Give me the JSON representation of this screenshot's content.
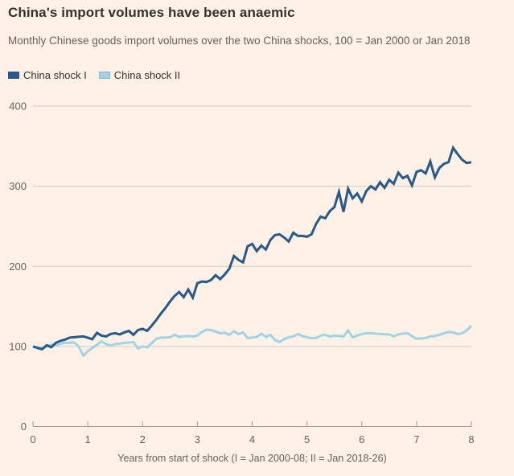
{
  "page": {
    "background": "#FFF1E5"
  },
  "header": {
    "title": "China's import volumes have been anaemic",
    "subtitle": "Monthly Chinese goods import volumes over the two China shocks, 100 = Jan 2000 or Jan 2018"
  },
  "legend": {
    "items": [
      {
        "label": "China shock I",
        "color": "#275A8C"
      },
      {
        "label": "China shock II",
        "color": "#9ED4E6"
      }
    ]
  },
  "chart_data": {
    "type": "line",
    "title": "China's import volumes have been anaemic",
    "subtitle": "Monthly Chinese goods import volumes over the two China shocks, 100 = Jan 2000 or Jan 2018",
    "xlabel": "Years from start of shock (I = Jan 2000-08; II = Jan 2018-26)",
    "ylabel": "",
    "x_ticks": [
      0,
      1,
      2,
      3,
      4,
      5,
      6,
      7,
      8
    ],
    "y_ticks": [
      0,
      100,
      200,
      300,
      400
    ],
    "xlim": [
      0,
      8
    ],
    "ylim": [
      0,
      400
    ],
    "grid": "horizontal-only",
    "legend_position": "top-left",
    "x_unit": "years from start of shock",
    "points_per_year": 12,
    "series": [
      {
        "name": "China shock I",
        "color": "#275A8C",
        "x_start": 0,
        "x_interval": 0.08333,
        "values": [
          100,
          98,
          96.5,
          101.5,
          99,
          104.5,
          107,
          108.5,
          111,
          111.5,
          112,
          112.5,
          111,
          109,
          117,
          113.5,
          112.5,
          115.5,
          116.5,
          115,
          117.5,
          119.5,
          114.5,
          120.5,
          122,
          119.5,
          126,
          133,
          141,
          148,
          156,
          163,
          168,
          161.5,
          171,
          161,
          179,
          181,
          180.5,
          183,
          189,
          184,
          190,
          197,
          213,
          208,
          205,
          225,
          228,
          219,
          226,
          221,
          233,
          239,
          240,
          236,
          231,
          242,
          238,
          238,
          237,
          240,
          253,
          262,
          260,
          269,
          274,
          293,
          268,
          297,
          285,
          291,
          281,
          294,
          300,
          296,
          305,
          298,
          308,
          303,
          317,
          310,
          313,
          301,
          318,
          320,
          316,
          331,
          311,
          323,
          328,
          330,
          348,
          340,
          333,
          329,
          330
        ]
      },
      {
        "name": "China shock II",
        "color": "#9ED4E6",
        "x_start": 0,
        "x_interval": 0.08333,
        "values": [
          100,
          99,
          97,
          100,
          102,
          101,
          103.5,
          104.5,
          104.5,
          105,
          100,
          88.5,
          94,
          98,
          102,
          106.5,
          103,
          101,
          103,
          103.5,
          104.5,
          105,
          105.5,
          97.5,
          100,
          99,
          104,
          109.5,
          111,
          111,
          111.5,
          114.5,
          112,
          112.5,
          113,
          112.5,
          113.5,
          118,
          121,
          120.5,
          118.5,
          116.5,
          117,
          114.5,
          119,
          115.5,
          117.5,
          110.5,
          111,
          112,
          116,
          112,
          114.5,
          108,
          105.5,
          109,
          111.5,
          112.5,
          115.5,
          113,
          111.5,
          110.5,
          110.5,
          113.5,
          114.5,
          112.5,
          113.5,
          113,
          112.5,
          120,
          111.5,
          113.5,
          115.5,
          116.5,
          116.5,
          116,
          115.5,
          115,
          115,
          112.5,
          115,
          116,
          116.5,
          113,
          109.5,
          110,
          110.5,
          112.5,
          113,
          114.5,
          116.5,
          118,
          117.5,
          115.5,
          116.5,
          120,
          126
        ]
      }
    ]
  }
}
